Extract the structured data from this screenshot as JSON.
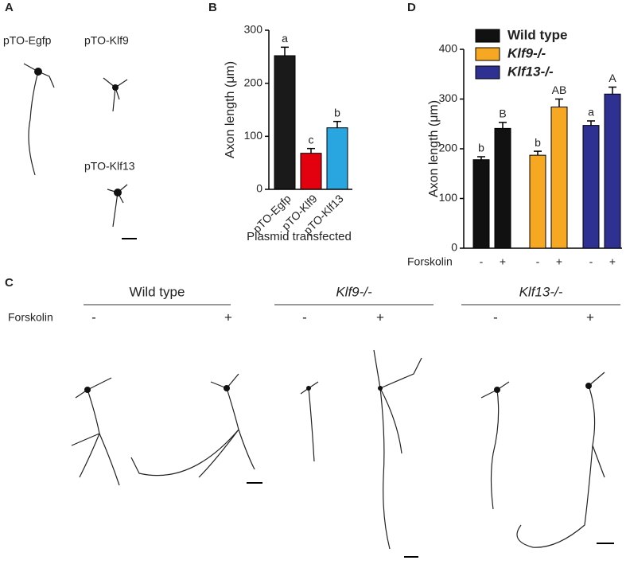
{
  "panel_a": {
    "label": "A",
    "images": [
      "pTO-Egfp",
      "pTO-Klf9",
      "pTO-Klf13"
    ]
  },
  "chart_data": [
    {
      "type": "bar",
      "panel_label": "B",
      "ylabel": "Axon length (μm)",
      "xlabel": "Plasmid transfected",
      "categories": [
        "pTO-Egfp",
        "pTO-Klf9",
        "pTO-Klf13"
      ],
      "values": [
        252,
        68,
        116
      ],
      "errors": [
        16,
        9,
        12
      ],
      "colors": [
        "#1a1a1a",
        "#e3000f",
        "#29a6e0"
      ],
      "annotations": [
        "a",
        "c",
        "b"
      ],
      "ylim": [
        0,
        300
      ],
      "yticks": [
        0,
        100,
        200,
        300
      ]
    },
    {
      "type": "grouped_bar",
      "panel_label": "D",
      "ylabel": "Axon length (μm)",
      "category_label": "Forskolin",
      "categories": [
        "-",
        "+"
      ],
      "series": [
        {
          "name": "Wild type",
          "color": "#111111",
          "values": [
            178,
            241
          ],
          "errors": [
            6,
            12
          ],
          "annotations": [
            "b",
            "B"
          ]
        },
        {
          "name": "Klf9-/-",
          "color": "#f7a823",
          "values": [
            187,
            284
          ],
          "errors": [
            8,
            16
          ],
          "annotations": [
            "b",
            "AB"
          ]
        },
        {
          "name": "Klf13-/-",
          "color": "#2e3192",
          "values": [
            247,
            310
          ],
          "errors": [
            9,
            14
          ],
          "annotations": [
            "a",
            "A"
          ]
        }
      ],
      "ylim": [
        0,
        400
      ],
      "yticks": [
        0,
        100,
        200,
        300,
        400
      ]
    }
  ],
  "panel_c": {
    "label": "C",
    "row_label": "Forskolin",
    "groups": [
      {
        "title": "Wild type",
        "conditions": [
          "-",
          "+"
        ]
      },
      {
        "title": "Klf9-/-",
        "conditions": [
          "-",
          "+"
        ]
      },
      {
        "title": "Klf13-/-",
        "conditions": [
          "-",
          "+"
        ]
      }
    ]
  }
}
